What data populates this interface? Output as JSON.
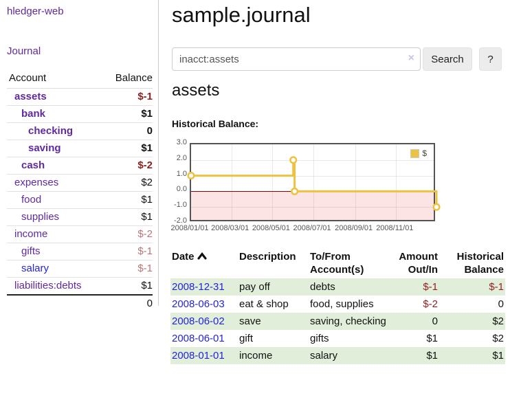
{
  "app": {
    "title_link": "hledger-web",
    "nav_journal": "Journal"
  },
  "sidebar_accounts": {
    "headers": {
      "account": "Account",
      "balance": "Balance"
    },
    "rows": [
      {
        "name": "assets",
        "balance": "$-1",
        "level": 1,
        "bold": true,
        "balance_class": "neg"
      },
      {
        "name": "bank",
        "balance": "$1",
        "level": 2,
        "bold": true,
        "balance_class": ""
      },
      {
        "name": "checking",
        "balance": "0",
        "level": 3,
        "bold": true,
        "balance_class": ""
      },
      {
        "name": "saving",
        "balance": "$1",
        "level": 3,
        "bold": true,
        "balance_class": ""
      },
      {
        "name": "cash",
        "balance": "$-2",
        "level": 2,
        "bold": true,
        "balance_class": "neg"
      },
      {
        "name": "expenses",
        "balance": "$2",
        "level": 1,
        "bold": false,
        "balance_class": ""
      },
      {
        "name": "food",
        "balance": "$1",
        "level": 2,
        "bold": false,
        "balance_class": ""
      },
      {
        "name": "supplies",
        "balance": "$1",
        "level": 2,
        "bold": false,
        "balance_class": ""
      },
      {
        "name": "income",
        "balance": "$-2",
        "level": 1,
        "bold": false,
        "balance_class": "neg-soft"
      },
      {
        "name": "gifts",
        "balance": "$-1",
        "level": 2,
        "bold": false,
        "balance_class": "neg-soft"
      },
      {
        "name": "salary",
        "balance": "$-1",
        "level": 2,
        "bold": false,
        "balance_class": "neg-soft",
        "link_class": "blue"
      },
      {
        "name": "liabilities:debts",
        "balance": "$1",
        "level": 1,
        "bold": false,
        "balance_class": ""
      }
    ],
    "total": "0"
  },
  "main": {
    "title": "sample.journal",
    "search": {
      "value": "inacct:assets",
      "clear_label": "×",
      "button_label": "Search",
      "help_label": "?"
    },
    "account_heading": "assets",
    "chart_title": "Historical Balance:"
  },
  "chart_data": {
    "type": "line",
    "title": "Historical Balance:",
    "step": true,
    "x_range": [
      "2008-01-01",
      "2008-12-31"
    ],
    "y_range": [
      -2.0,
      3.0
    ],
    "y_ticks": [
      {
        "value": 3.0,
        "label": "3.0"
      },
      {
        "value": 2.0,
        "label": "2.0"
      },
      {
        "value": 1.0,
        "label": "1.0"
      },
      {
        "value": 0.0,
        "label": "0.0"
      },
      {
        "value": -1.0,
        "label": "-1.0"
      },
      {
        "value": -2.0,
        "label": "-2.0"
      }
    ],
    "x_ticks": [
      {
        "date": "2008-01-01",
        "label": "2008/01/01"
      },
      {
        "date": "2008-03-01",
        "label": "2008/03/01"
      },
      {
        "date": "2008-05-01",
        "label": "2008/05/01"
      },
      {
        "date": "2008-07-01",
        "label": "2008/07/01"
      },
      {
        "date": "2008-09-01",
        "label": "2008/09/01"
      },
      {
        "date": "2008-11-01",
        "label": "2008/11/01"
      }
    ],
    "series": [
      {
        "name": "$",
        "color": "#edc240",
        "points": [
          {
            "date": "2008-01-01",
            "value": 1
          },
          {
            "date": "2008-06-01",
            "value": 2
          },
          {
            "date": "2008-06-03",
            "value": 0
          },
          {
            "date": "2008-12-31",
            "value": -1
          }
        ]
      }
    ],
    "legend": [
      "$"
    ],
    "legend_position": "top-right",
    "grid": true,
    "negative_region": true
  },
  "register": {
    "headers": {
      "date": "Date",
      "description": "Description",
      "tofrom": "To/From Account(s)",
      "amount": "Amount Out/In",
      "balance": "Historical Balance"
    },
    "rows": [
      {
        "date": "2008-12-31",
        "description": "pay off",
        "accounts": "debts",
        "amount": "$-1",
        "amount_class": "neg",
        "balance": "$-1",
        "balance_class": "neg",
        "stripe": true
      },
      {
        "date": "2008-06-03",
        "description": "eat & shop",
        "accounts": "food, supplies",
        "amount": "$-2",
        "amount_class": "neg",
        "balance": "0",
        "balance_class": "",
        "stripe": false
      },
      {
        "date": "2008-06-02",
        "description": "save",
        "accounts": "saving, checking",
        "amount": "0",
        "amount_class": "",
        "balance": "$2",
        "balance_class": "",
        "stripe": true
      },
      {
        "date": "2008-06-01",
        "description": "gift",
        "accounts": "gifts",
        "amount": "$1",
        "amount_class": "",
        "balance": "$2",
        "balance_class": "",
        "stripe": false
      },
      {
        "date": "2008-01-01",
        "description": "income",
        "accounts": "salary",
        "amount": "$1",
        "amount_class": "",
        "balance": "$1",
        "balance_class": "",
        "stripe": true
      }
    ]
  },
  "colors": {
    "link_purple": "#5f2aa0",
    "link_blue": "#2323dd",
    "negative_strong": "#8f1f1f",
    "negative_soft": "#b97676",
    "row_green": "#e1efda",
    "chart_gold": "#edc240",
    "zero_line": "#8b0000",
    "negative_region": "#fcdddd",
    "chart_border": "#545454"
  }
}
